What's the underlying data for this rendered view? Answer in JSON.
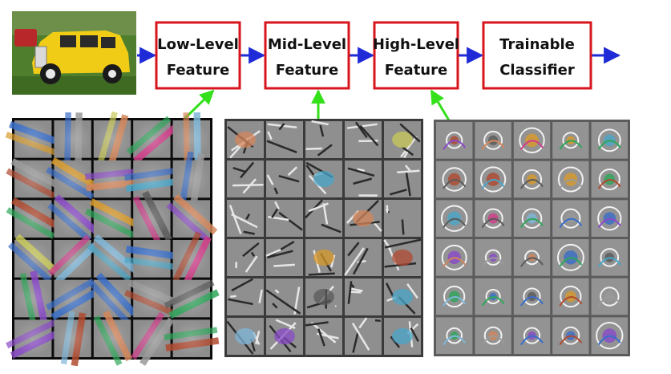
{
  "pipeline": {
    "input": {
      "subject": "yellow vintage car photo"
    },
    "stages": [
      {
        "line1": "Low-Level",
        "line2": "Feature"
      },
      {
        "line1": "Mid-Level",
        "line2": "Feature"
      },
      {
        "line1": "High-Level",
        "line2": "Feature"
      },
      {
        "line1": "Trainable",
        "line2": "Classifier"
      }
    ]
  },
  "feature_grids": [
    {
      "name": "low-level-filters",
      "rows": 6,
      "cols": 5,
      "background": "#0b0b0b"
    },
    {
      "name": "mid-level-features",
      "rows": 6,
      "cols": 5,
      "background": "#3a3a3a"
    },
    {
      "name": "high-level-features",
      "rows": 6,
      "cols": 5,
      "background": "#5b5b5b"
    }
  ],
  "colors": {
    "box_border": "#d8141c",
    "flow_arrow": "#1f2bd6",
    "link_arrow": "#33e01a",
    "cell_gray": "#8c8c8c"
  }
}
